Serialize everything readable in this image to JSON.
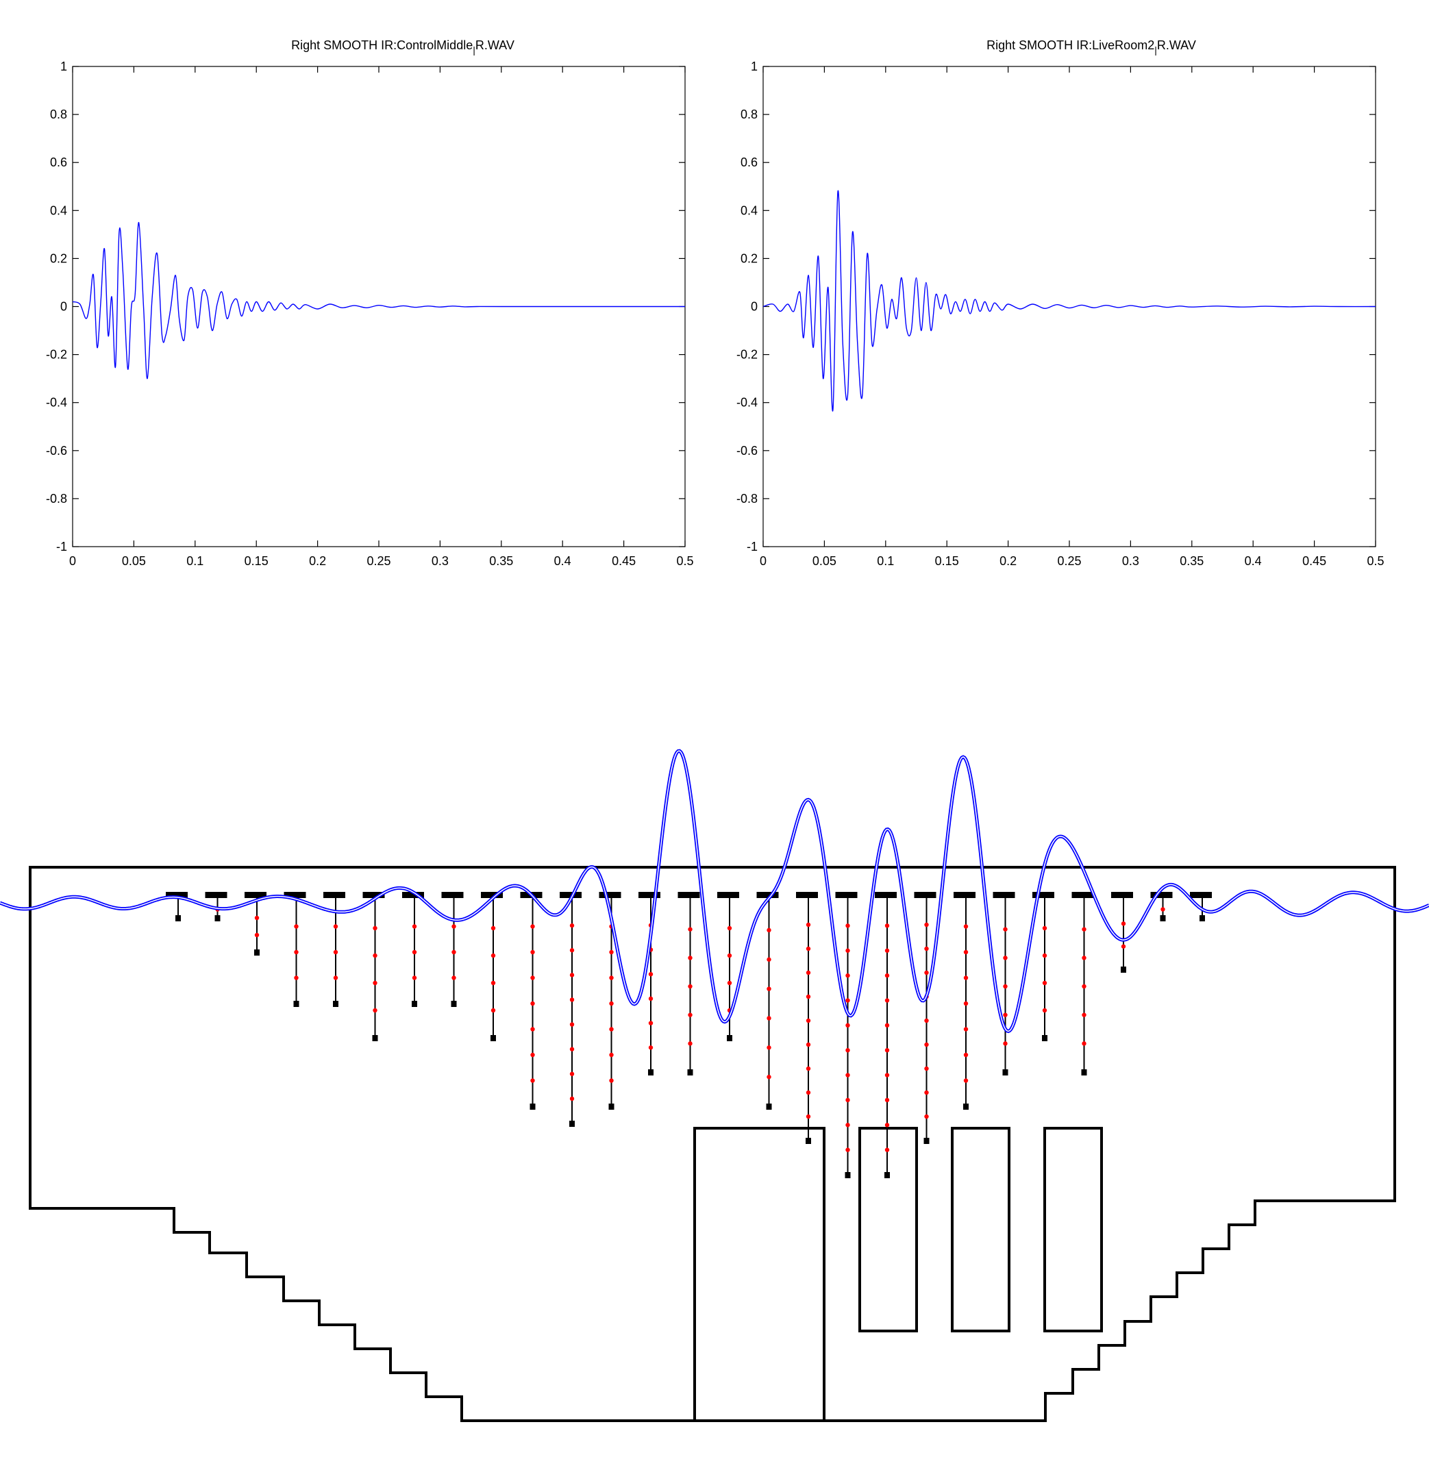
{
  "chart_data": [
    {
      "type": "line",
      "title": "Right SMOOTH IR:ControlMiddle",
      "title_suffix": "R.WAV",
      "title_subscript": "|",
      "xlabel": "",
      "ylabel": "",
      "xlim": [
        0,
        0.5
      ],
      "ylim": [
        -1,
        1
      ],
      "x_ticks": [
        0,
        0.05,
        0.1,
        0.15,
        0.2,
        0.25,
        0.3,
        0.35,
        0.4,
        0.45,
        0.5
      ],
      "x_tick_labels": [
        "0",
        "0.05",
        "0.1",
        "0.15",
        "0.2",
        "0.25",
        "0.3",
        "0.35",
        "0.4",
        "0.45",
        "0.5"
      ],
      "y_ticks": [
        1,
        0.8,
        0.6,
        0.4,
        0.2,
        0,
        -0.2,
        -0.4,
        -0.6,
        -0.8,
        -1
      ],
      "y_tick_labels": [
        "1",
        "0.8",
        "0.6",
        "0.4",
        "0.2",
        "0",
        "-0.2",
        "-0.4",
        "-0.6",
        "-0.8",
        "-1"
      ],
      "grid": false,
      "line_color": "#0000ff",
      "series": [
        {
          "x": [
            0,
            0.006,
            0.011,
            0.014,
            0.017,
            0.02,
            0.023,
            0.026,
            0.029,
            0.032,
            0.035,
            0.038,
            0.041,
            0.045,
            0.048,
            0.051,
            0.054,
            0.058,
            0.061,
            0.065,
            0.069,
            0.073,
            0.076,
            0.08,
            0.084,
            0.087,
            0.091,
            0.094,
            0.098,
            0.102,
            0.106,
            0.11,
            0.114,
            0.118,
            0.122,
            0.126,
            0.13,
            0.134,
            0.138,
            0.142,
            0.146,
            0.15,
            0.155,
            0.16,
            0.165,
            0.17,
            0.175,
            0.18,
            0.185,
            0.19,
            0.2,
            0.21,
            0.22,
            0.23,
            0.24,
            0.25,
            0.26,
            0.27,
            0.28,
            0.29,
            0.3,
            0.31,
            0.32,
            0.33,
            0.35,
            0.4,
            0.45,
            0.5
          ],
          "y": [
            0.02,
            0.01,
            -0.05,
            0.01,
            0.13,
            -0.17,
            0.02,
            0.24,
            -0.12,
            0.04,
            -0.25,
            0.31,
            0.15,
            -0.26,
            0.0,
            0.05,
            0.35,
            -0.01,
            -0.3,
            0.04,
            0.22,
            -0.12,
            -0.12,
            -0.01,
            0.13,
            -0.05,
            -0.14,
            0.04,
            0.07,
            -0.09,
            0.06,
            0.04,
            -0.1,
            0.01,
            0.06,
            -0.05,
            0.01,
            0.03,
            -0.04,
            0.02,
            -0.02,
            0.02,
            -0.02,
            0.02,
            -0.015,
            0.015,
            -0.01,
            0.01,
            -0.01,
            0.008,
            -0.01,
            0.01,
            -0.005,
            0.004,
            -0.005,
            0.005,
            -0.003,
            0.003,
            -0.003,
            0.002,
            -0.002,
            0.002,
            -0.001,
            0.0,
            0.0,
            0.0,
            0.0,
            0.0
          ]
        }
      ]
    },
    {
      "type": "line",
      "title": "Right SMOOTH IR:LiveRoom2",
      "title_suffix": "R.WAV",
      "title_subscript": "|",
      "xlabel": "",
      "ylabel": "",
      "xlim": [
        0,
        0.5
      ],
      "ylim": [
        -1,
        1
      ],
      "x_ticks": [
        0,
        0.05,
        0.1,
        0.15,
        0.2,
        0.25,
        0.3,
        0.35,
        0.4,
        0.45,
        0.5
      ],
      "x_tick_labels": [
        "0",
        "0.05",
        "0.1",
        "0.15",
        "0.2",
        "0.25",
        "0.3",
        "0.35",
        "0.4",
        "0.45",
        "0.5"
      ],
      "y_ticks": [
        1,
        0.8,
        0.6,
        0.4,
        0.2,
        0,
        -0.2,
        -0.4,
        -0.6,
        -0.8,
        -1
      ],
      "y_tick_labels": [
        "1",
        "0.8",
        "0.6",
        "0.4",
        "0.2",
        "0",
        "-0.2",
        "-0.4",
        "-0.6",
        "-0.8",
        "-1"
      ],
      "grid": false,
      "line_color": "#0000ff",
      "series": [
        {
          "x": [
            0,
            0.008,
            0.014,
            0.02,
            0.025,
            0.03,
            0.033,
            0.037,
            0.041,
            0.045,
            0.049,
            0.053,
            0.057,
            0.061,
            0.065,
            0.069,
            0.073,
            0.077,
            0.081,
            0.085,
            0.089,
            0.093,
            0.097,
            0.101,
            0.105,
            0.109,
            0.113,
            0.117,
            0.121,
            0.125,
            0.129,
            0.133,
            0.137,
            0.141,
            0.145,
            0.149,
            0.153,
            0.157,
            0.161,
            0.165,
            0.169,
            0.173,
            0.177,
            0.181,
            0.185,
            0.189,
            0.195,
            0.2,
            0.21,
            0.22,
            0.23,
            0.24,
            0.25,
            0.26,
            0.27,
            0.28,
            0.29,
            0.3,
            0.31,
            0.32,
            0.33,
            0.34,
            0.35,
            0.37,
            0.39,
            0.41,
            0.43,
            0.45,
            0.47,
            0.5
          ],
          "y": [
            0.0,
            0.01,
            -0.02,
            0.01,
            -0.02,
            0.06,
            -0.13,
            0.13,
            -0.17,
            0.21,
            -0.3,
            0.08,
            -0.43,
            0.48,
            -0.15,
            -0.37,
            0.31,
            -0.15,
            -0.37,
            0.22,
            -0.16,
            -0.01,
            0.09,
            -0.09,
            0.03,
            -0.05,
            0.12,
            -0.09,
            -0.1,
            0.12,
            -0.1,
            0.1,
            -0.1,
            0.05,
            -0.01,
            0.05,
            -0.03,
            0.02,
            -0.02,
            0.03,
            -0.03,
            0.03,
            -0.02,
            0.02,
            -0.02,
            0.015,
            -0.015,
            0.01,
            -0.01,
            0.01,
            -0.008,
            0.008,
            -0.006,
            0.006,
            -0.005,
            0.005,
            -0.004,
            0.004,
            -0.003,
            0.003,
            -0.003,
            0.002,
            -0.002,
            0.002,
            -0.002,
            0.001,
            -0.001,
            0.001,
            0.0,
            0.0
          ]
        }
      ]
    }
  ],
  "illustration": {
    "wave_color": "#0000ff",
    "outline_color": "#000000",
    "dot_color": "#ff0000",
    "stick_lengths": [
      1,
      1,
      3,
      6,
      6,
      8,
      6,
      6,
      8,
      12,
      13,
      12,
      10,
      10,
      8,
      12,
      14,
      16,
      16,
      14,
      12,
      10,
      8,
      10,
      4,
      1,
      1
    ],
    "stick_dot_counts": [
      0,
      1,
      2,
      3,
      3,
      4,
      3,
      3,
      4,
      7,
      8,
      7,
      6,
      5,
      4,
      6,
      9,
      10,
      10,
      9,
      7,
      5,
      4,
      5,
      2,
      1,
      0
    ]
  }
}
